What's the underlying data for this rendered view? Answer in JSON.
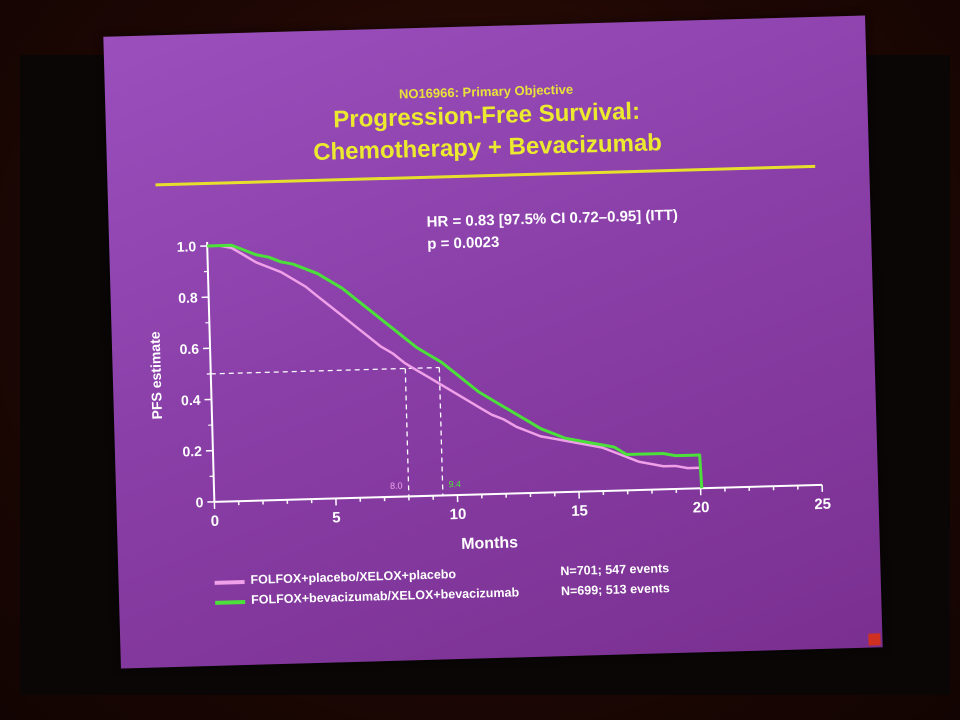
{
  "slide": {
    "subtitle": "NO16966: Primary Objective",
    "title_line1": "Progression-Free Survival:",
    "title_line2": "Chemotherapy + Bevacizumab",
    "stat_hr": "HR = 0.83 [97.5% CI 0.72–0.95] (ITT)",
    "stat_p": "p = 0.0023"
  },
  "legend": [
    {
      "label": "FOLFOX+placebo/XELOX+placebo",
      "count": "N=701; 547 events",
      "color": "#f0a0e8"
    },
    {
      "label": "FOLFOX+bevacizumab/XELOX+bevacizumab",
      "count": "N=699; 513 events",
      "color": "#4ce03a"
    }
  ],
  "chart_data": {
    "type": "line",
    "xlabel": "Months",
    "ylabel": "PFS estimate",
    "xlim": [
      0,
      25
    ],
    "ylim": [
      0,
      1.0
    ],
    "x_ticks": [
      "0",
      "5",
      "10",
      "15",
      "20",
      "25"
    ],
    "y_ticks": [
      "0",
      "0.2",
      "0.4",
      "0.6",
      "0.8",
      "1.0"
    ],
    "median_line": 0.5,
    "medians": [
      {
        "label": "8.0",
        "x": 8.0,
        "color": "#f0a0e8"
      },
      {
        "label": "9.4",
        "x": 9.4,
        "color": "#4ce03a"
      }
    ],
    "series": [
      {
        "name": "FOLFOX+placebo/XELOX+placebo",
        "color": "#f0a0e8",
        "x": [
          0,
          0.5,
          1,
          1.5,
          2,
          2.5,
          3,
          3.5,
          4,
          4.5,
          5,
          5.5,
          6,
          6.5,
          7,
          7.5,
          8,
          8.5,
          9,
          9.5,
          10,
          10.5,
          11,
          11.5,
          12,
          12.5,
          13,
          13.5,
          14,
          14.5,
          15,
          15.5,
          16,
          16.5,
          17,
          17.5,
          18,
          18.5,
          19,
          19.5,
          20
        ],
        "y": [
          1.0,
          1.0,
          0.99,
          0.96,
          0.93,
          0.91,
          0.89,
          0.86,
          0.83,
          0.79,
          0.75,
          0.71,
          0.67,
          0.63,
          0.59,
          0.56,
          0.52,
          0.49,
          0.46,
          0.43,
          0.4,
          0.37,
          0.34,
          0.31,
          0.29,
          0.26,
          0.24,
          0.22,
          0.21,
          0.2,
          0.19,
          0.18,
          0.17,
          0.15,
          0.13,
          0.11,
          0.1,
          0.09,
          0.09,
          0.08,
          0.08
        ]
      },
      {
        "name": "FOLFOX+bevacizumab/XELOX+bevacizumab",
        "color": "#4ce03a",
        "x": [
          0,
          0.5,
          1,
          1.5,
          2,
          2.5,
          3,
          3.5,
          4,
          4.5,
          5,
          5.5,
          6,
          6.5,
          7,
          7.5,
          8,
          8.5,
          9,
          9.5,
          10,
          10.5,
          11,
          11.5,
          12,
          12.5,
          13,
          13.5,
          14,
          14.5,
          15,
          15.5,
          16,
          16.5,
          17,
          17.5,
          18,
          18.5,
          19,
          19.5,
          20,
          20.05
        ],
        "y": [
          1.0,
          1.0,
          1.0,
          0.98,
          0.96,
          0.95,
          0.93,
          0.92,
          0.9,
          0.88,
          0.85,
          0.82,
          0.78,
          0.74,
          0.7,
          0.66,
          0.62,
          0.58,
          0.55,
          0.52,
          0.48,
          0.44,
          0.4,
          0.37,
          0.34,
          0.31,
          0.28,
          0.25,
          0.23,
          0.21,
          0.2,
          0.19,
          0.18,
          0.17,
          0.14,
          0.14,
          0.14,
          0.14,
          0.13,
          0.13,
          0.13,
          0.0
        ]
      }
    ]
  }
}
